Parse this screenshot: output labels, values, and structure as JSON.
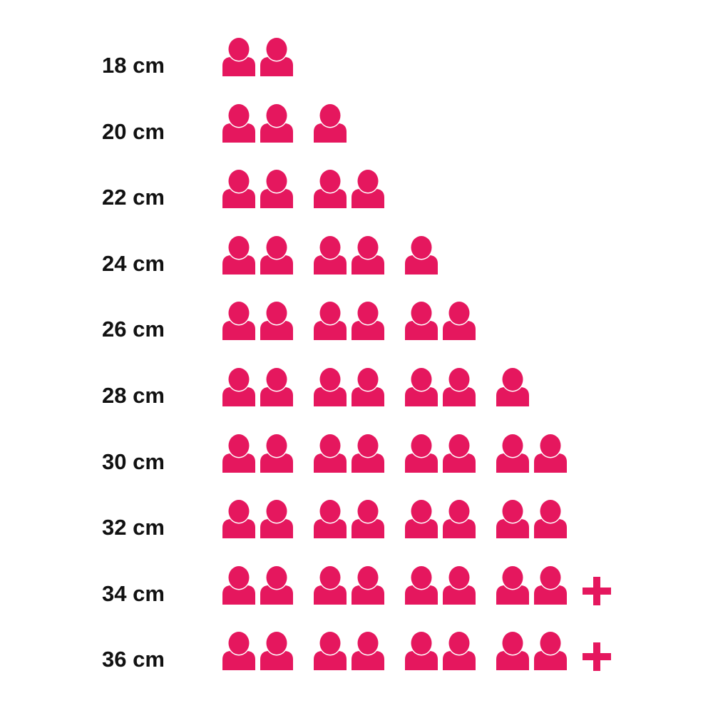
{
  "chart_data": {
    "type": "pictogram",
    "icon": "person-icon",
    "overflow_icon": "plus-icon",
    "color": "#E5175E",
    "categories": [
      "18 cm",
      "20 cm",
      "22 cm",
      "24 cm",
      "26 cm",
      "28 cm",
      "30 cm",
      "32 cm",
      "34 cm",
      "36 cm"
    ],
    "values": [
      2,
      3,
      4,
      5,
      6,
      7,
      8,
      8,
      8,
      8
    ],
    "overflow": [
      false,
      false,
      false,
      false,
      false,
      false,
      false,
      false,
      true,
      true
    ]
  }
}
